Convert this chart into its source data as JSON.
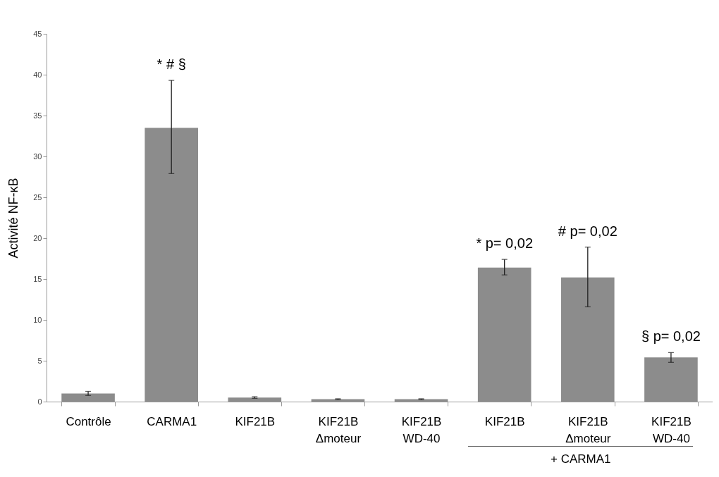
{
  "chart_data": {
    "type": "bar",
    "ylabel": "Activité NF-κB",
    "categories": [
      "Contrôle",
      "CARMA1",
      "KIF21B",
      "KIF21B\nΔmoteur",
      "KIF21B\nWD-40",
      "KIF21B",
      "KIF21B\nΔmoteur",
      "KIF21B\nWD-40"
    ],
    "values": [
      1.0,
      33.5,
      0.5,
      0.3,
      0.3,
      16.4,
      15.2,
      5.4
    ],
    "errors": [
      0.25,
      [
        27.9,
        39.3
      ],
      0.1,
      0.05,
      0.05,
      [
        15.5,
        17.4
      ],
      [
        11.6,
        18.9
      ],
      [
        4.8,
        6.0
      ]
    ],
    "color": "#8c8c8c",
    "ylim": [
      0,
      45
    ],
    "yticks": [
      0,
      5,
      10,
      15,
      20,
      25,
      30,
      35,
      40,
      45
    ],
    "grid": false,
    "annotations": [
      "* # §",
      "* p= 0,02",
      "# p= 0,02",
      "§ p= 0,02",
      "+ CARMA1"
    ]
  }
}
